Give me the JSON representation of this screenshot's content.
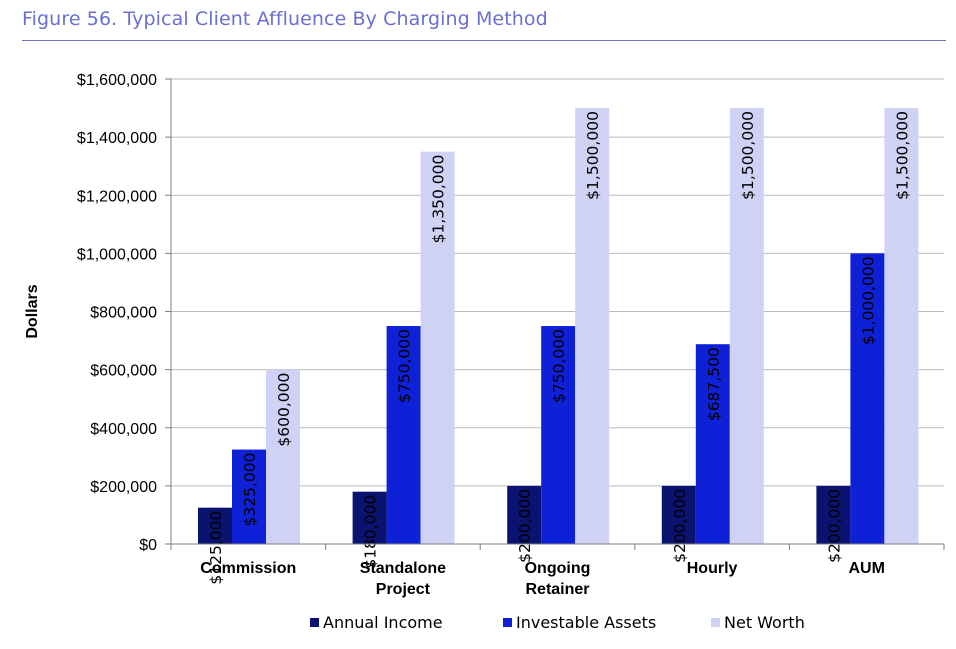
{
  "chart_data": {
    "type": "bar",
    "title": "Figure 56. Typical Client Affluence By Charging Method",
    "xlabel": "",
    "ylabel": "Dollars",
    "ylim": [
      0,
      1600000
    ],
    "yticks": [
      0,
      200000,
      400000,
      600000,
      800000,
      1000000,
      1200000,
      1400000,
      1600000
    ],
    "ytick_labels": [
      "$0",
      "$200,000",
      "$400,000",
      "$600,000",
      "$800,000",
      "$1,000,000",
      "$1,200,000",
      "$1,400,000",
      "$1,600,000"
    ],
    "categories": [
      [
        "Commission"
      ],
      [
        "Standalone",
        "Project"
      ],
      [
        "Ongoing",
        "Retainer"
      ],
      [
        "Hourly"
      ],
      [
        "AUM"
      ]
    ],
    "series": [
      {
        "name": "Annual Income",
        "color": "#0a1370",
        "values": [
          125000,
          180000,
          200000,
          200000,
          200000
        ],
        "labels": [
          "$125,000",
          "$180,000",
          "$200,000",
          "$200,000",
          "$200,000"
        ]
      },
      {
        "name": "Investable Assets",
        "color": "#0f21d6",
        "values": [
          325000,
          750000,
          750000,
          687500,
          1000000
        ],
        "labels": [
          "$325,000",
          "$750,000",
          "$750,000",
          "$687,500",
          "$1,000,000"
        ]
      },
      {
        "name": "Net Worth",
        "color": "#cfd1f5",
        "values": [
          600000,
          1350000,
          1500000,
          1500000,
          1500000
        ],
        "labels": [
          "$600,000",
          "$1,350,000",
          "$1,500,000",
          "$1,500,000",
          "$1,500,000"
        ]
      }
    ],
    "grid": true,
    "legend": "bottom"
  }
}
